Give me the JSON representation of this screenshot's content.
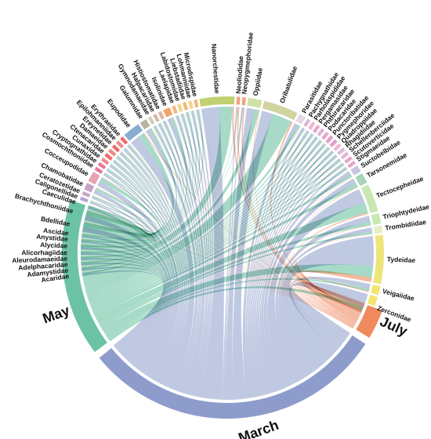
{
  "chart_data": {
    "type": "chord",
    "months": [
      {
        "name": "March",
        "color": "#8d9ccb",
        "weight": 100
      },
      {
        "name": "May",
        "color": "#6cc3a4",
        "weight": 50
      },
      {
        "name": "July",
        "color": "#ee8a5e",
        "weight": 4
      }
    ],
    "families": [
      {
        "name": "Zerconidae",
        "color": "#f2e76d",
        "weight": 6,
        "march": 0.7,
        "may": 0.2,
        "july": 0.1
      },
      {
        "name": "Veigaiidae",
        "color": "#f2e76d",
        "weight": 2.5,
        "march": 0.6,
        "may": 0.3,
        "july": 0.1
      },
      {
        "name": "Tydeidae",
        "color": "#ece678",
        "weight": 14,
        "march": 0.65,
        "may": 0.25,
        "july": 0.1
      },
      {
        "name": "Trombidiidae",
        "color": "#e3efc1",
        "weight": 2,
        "march": 0.6,
        "may": 0.35,
        "july": 0.05
      },
      {
        "name": "Triophtydeidae",
        "color": "#c9e7b0",
        "weight": 3,
        "march": 0.6,
        "may": 0.35,
        "july": 0.05
      },
      {
        "name": "Tectocepheidae",
        "color": "#c9e7b0",
        "weight": 8,
        "march": 0.55,
        "may": 0.4,
        "july": 0.05
      },
      {
        "name": "Tarsonemidae",
        "color": "#a9d4b9",
        "weight": 3,
        "march": 0.55,
        "may": 0.4,
        "july": 0.05
      },
      {
        "name": "Suctobelbidae",
        "color": "#c9c5dd",
        "weight": 2,
        "march": 0.55,
        "may": 0.4,
        "july": 0.05
      },
      {
        "name": "Stigmaeidae",
        "color": "#e7a6c8",
        "weight": 1,
        "march": 0.5,
        "may": 0.45,
        "july": 0.05
      },
      {
        "name": "Scutoverticidae",
        "color": "#e7a6c8",
        "weight": 1,
        "march": 0.5,
        "may": 0.45,
        "july": 0.05
      },
      {
        "name": "Schellenberciidae",
        "color": "#dcb8d7",
        "weight": 1,
        "march": 0.5,
        "may": 0.45,
        "july": 0.05
      },
      {
        "name": "Rhagidiidae",
        "color": "#dcb8d7",
        "weight": 1,
        "march": 0.5,
        "may": 0.45,
        "july": 0.05
      },
      {
        "name": "Quadroppiidae",
        "color": "#f0b6d0",
        "weight": 1,
        "march": 0.5,
        "may": 0.45,
        "july": 0.05
      },
      {
        "name": "Pygmephoridae",
        "color": "#e29cc6",
        "weight": 1,
        "march": 0.5,
        "may": 0.45,
        "july": 0.05
      },
      {
        "name": "Punctoribatidae",
        "color": "#e29cc6",
        "weight": 1,
        "march": 0.5,
        "may": 0.45,
        "july": 0.05
      },
      {
        "name": "Podacaridae",
        "color": "#e7a6c8",
        "weight": 1,
        "march": 0.5,
        "may": 0.45,
        "july": 0.05
      },
      {
        "name": "Phthiracaridae",
        "color": "#dcb8d7",
        "weight": 1,
        "march": 0.5,
        "may": 0.45,
        "july": 0.05
      },
      {
        "name": "Pergamasidae",
        "color": "#e7a6c8",
        "weight": 1,
        "march": 0.5,
        "may": 0.45,
        "july": 0.05
      },
      {
        "name": "Parholaspididae",
        "color": "#f0b6d0",
        "weight": 1,
        "march": 0.5,
        "may": 0.45,
        "july": 0.05
      },
      {
        "name": "Pachygnathidae",
        "color": "#dcb8d7",
        "weight": 1,
        "march": 0.5,
        "may": 0.45,
        "july": 0.05
      },
      {
        "name": "Parasitidae",
        "color": "#e7d6e8",
        "weight": 2,
        "march": 0.55,
        "may": 0.4,
        "july": 0.05
      },
      {
        "name": "Oribatulidae",
        "color": "#cfd4a0",
        "weight": 10,
        "march": 0.35,
        "may": 0.6,
        "july": 0.05
      },
      {
        "name": "Oppiidae",
        "color": "#cfe2a6",
        "weight": 4,
        "march": 0.55,
        "may": 0.4,
        "july": 0.05
      },
      {
        "name": "Neopygmephoridae",
        "color": "#f0a183",
        "weight": 1,
        "march": 0.4,
        "may": 0.2,
        "july": 0.4
      },
      {
        "name": "Neoliodidae",
        "color": "#f0a183",
        "weight": 1,
        "march": 0.4,
        "may": 0.2,
        "july": 0.4
      },
      {
        "name": "Nanorchestidae",
        "color": "#c0d172",
        "weight": 10,
        "march": 0.55,
        "may": 0.4,
        "july": 0.05
      },
      {
        "name": "Microdispidae",
        "color": "#f3b97f",
        "weight": 1,
        "march": 0.55,
        "may": 0.4,
        "july": 0.05
      },
      {
        "name": "Lohmanniidae",
        "color": "#f2d58d",
        "weight": 1,
        "march": 0.55,
        "may": 0.4,
        "july": 0.05
      },
      {
        "name": "Liebstadiidae",
        "color": "#f3b97f",
        "weight": 1,
        "march": 0.55,
        "may": 0.4,
        "july": 0.05
      },
      {
        "name": "Labidostomidae",
        "color": "#f2d58d",
        "weight": 1,
        "march": 0.55,
        "may": 0.4,
        "july": 0.05
      },
      {
        "name": "Laelapidae",
        "color": "#f3b97f",
        "weight": 1,
        "march": 0.55,
        "may": 0.4,
        "july": 0.05
      },
      {
        "name": "Isolinidae",
        "color": "#f0a56f",
        "weight": 2,
        "march": 0.55,
        "may": 0.4,
        "july": 0.05
      },
      {
        "name": "Histiostomatidae",
        "color": "#d9b7a6",
        "weight": 1,
        "march": 0.55,
        "may": 0.4,
        "july": 0.05
      },
      {
        "name": "Halpacariidae",
        "color": "#d9b7a6",
        "weight": 1,
        "march": 0.55,
        "may": 0.4,
        "july": 0.05
      },
      {
        "name": "Gymnodamaeidae",
        "color": "#cfcfbf",
        "weight": 1,
        "march": 0.55,
        "may": 0.4,
        "july": 0.05
      },
      {
        "name": "Galumnidae",
        "color": "#b8b5a5",
        "weight": 2,
        "march": 0.55,
        "may": 0.4,
        "july": 0.05
      },
      {
        "name": "Eupodidae",
        "color": "#86aed0",
        "weight": 5,
        "march": 0.6,
        "may": 0.35,
        "july": 0.05
      },
      {
        "name": "Erythraeidae",
        "color": "#f26a6a",
        "weight": 1,
        "march": 0.55,
        "may": 0.4,
        "july": 0.05
      },
      {
        "name": "Epilohmanniidae",
        "color": "#f08a8a",
        "weight": 1,
        "march": 0.55,
        "may": 0.4,
        "july": 0.05
      },
      {
        "name": "Ereynetidae",
        "color": "#f26a6a",
        "weight": 1,
        "march": 0.55,
        "may": 0.4,
        "july": 0.05
      },
      {
        "name": "Damaeidae",
        "color": "#f08a8a",
        "weight": 1,
        "march": 0.55,
        "may": 0.4,
        "july": 0.05
      },
      {
        "name": "Ctenacaridae",
        "color": "#f26a6a",
        "weight": 1,
        "march": 0.55,
        "may": 0.4,
        "july": 0.05
      },
      {
        "name": "Cunaxidae",
        "color": "#f08a8a",
        "weight": 1,
        "march": 0.55,
        "may": 0.4,
        "july": 0.05
      },
      {
        "name": "Cryptognathidae",
        "color": "#e37a9a",
        "weight": 1,
        "march": 0.55,
        "may": 0.4,
        "july": 0.05
      },
      {
        "name": "Cosmochthoniidae",
        "color": "#e37a9a",
        "weight": 1,
        "march": 0.55,
        "may": 0.4,
        "july": 0.05
      },
      {
        "name": "Cocceupodidae",
        "color": "#e8a3b3",
        "weight": 3,
        "march": 0.55,
        "may": 0.4,
        "july": 0.05
      },
      {
        "name": "Chamobatidae",
        "color": "#c8a3c8",
        "weight": 2,
        "march": 0.55,
        "may": 0.4,
        "july": 0.05
      },
      {
        "name": "Ceratozetidae",
        "color": "#c8a3c8",
        "weight": 1,
        "march": 0.55,
        "may": 0.4,
        "july": 0.05
      },
      {
        "name": "Caligonellidae",
        "color": "#b4a8cf",
        "weight": 1,
        "march": 0.55,
        "may": 0.4,
        "july": 0.05
      },
      {
        "name": "Caeculidae",
        "color": "#b4a8cf",
        "weight": 1,
        "march": 0.55,
        "may": 0.4,
        "july": 0.05
      },
      {
        "name": "Brachychthoniidae",
        "color": "#d6d4be",
        "weight": 3,
        "march": 0.55,
        "may": 0.4,
        "july": 0.05
      },
      {
        "name": "Bdellidae",
        "color": "#d8e8b0",
        "weight": 3,
        "march": 0.55,
        "may": 0.4,
        "july": 0.05
      },
      {
        "name": "Ascidae",
        "color": "#d8e8b0",
        "weight": 1,
        "march": 0.55,
        "may": 0.4,
        "july": 0.05
      },
      {
        "name": "Anystidae",
        "color": "#eef0b0",
        "weight": 1,
        "march": 0.55,
        "may": 0.4,
        "july": 0.05
      },
      {
        "name": "Alycidae",
        "color": "#eef0b0",
        "weight": 1.5,
        "march": 0.55,
        "may": 0.4,
        "july": 0.05
      },
      {
        "name": "Alicorhagiidae",
        "color": "#b9e0d0",
        "weight": 1,
        "march": 0.55,
        "may": 0.4,
        "july": 0.05
      },
      {
        "name": "Aleurodamaeidae",
        "color": "#b9e0d0",
        "weight": 1,
        "march": 0.55,
        "may": 0.4,
        "july": 0.05
      },
      {
        "name": "Adelphacaridae",
        "color": "#c4cbe5",
        "weight": 1,
        "march": 0.55,
        "may": 0.4,
        "july": 0.05
      },
      {
        "name": "Adamystidae",
        "color": "#c4cbe5",
        "weight": 1,
        "march": 0.55,
        "may": 0.4,
        "july": 0.05
      },
      {
        "name": "Acaridae",
        "color": "#e7d6e8",
        "weight": 1,
        "march": 0.55,
        "may": 0.4,
        "july": 0.05
      }
    ]
  }
}
